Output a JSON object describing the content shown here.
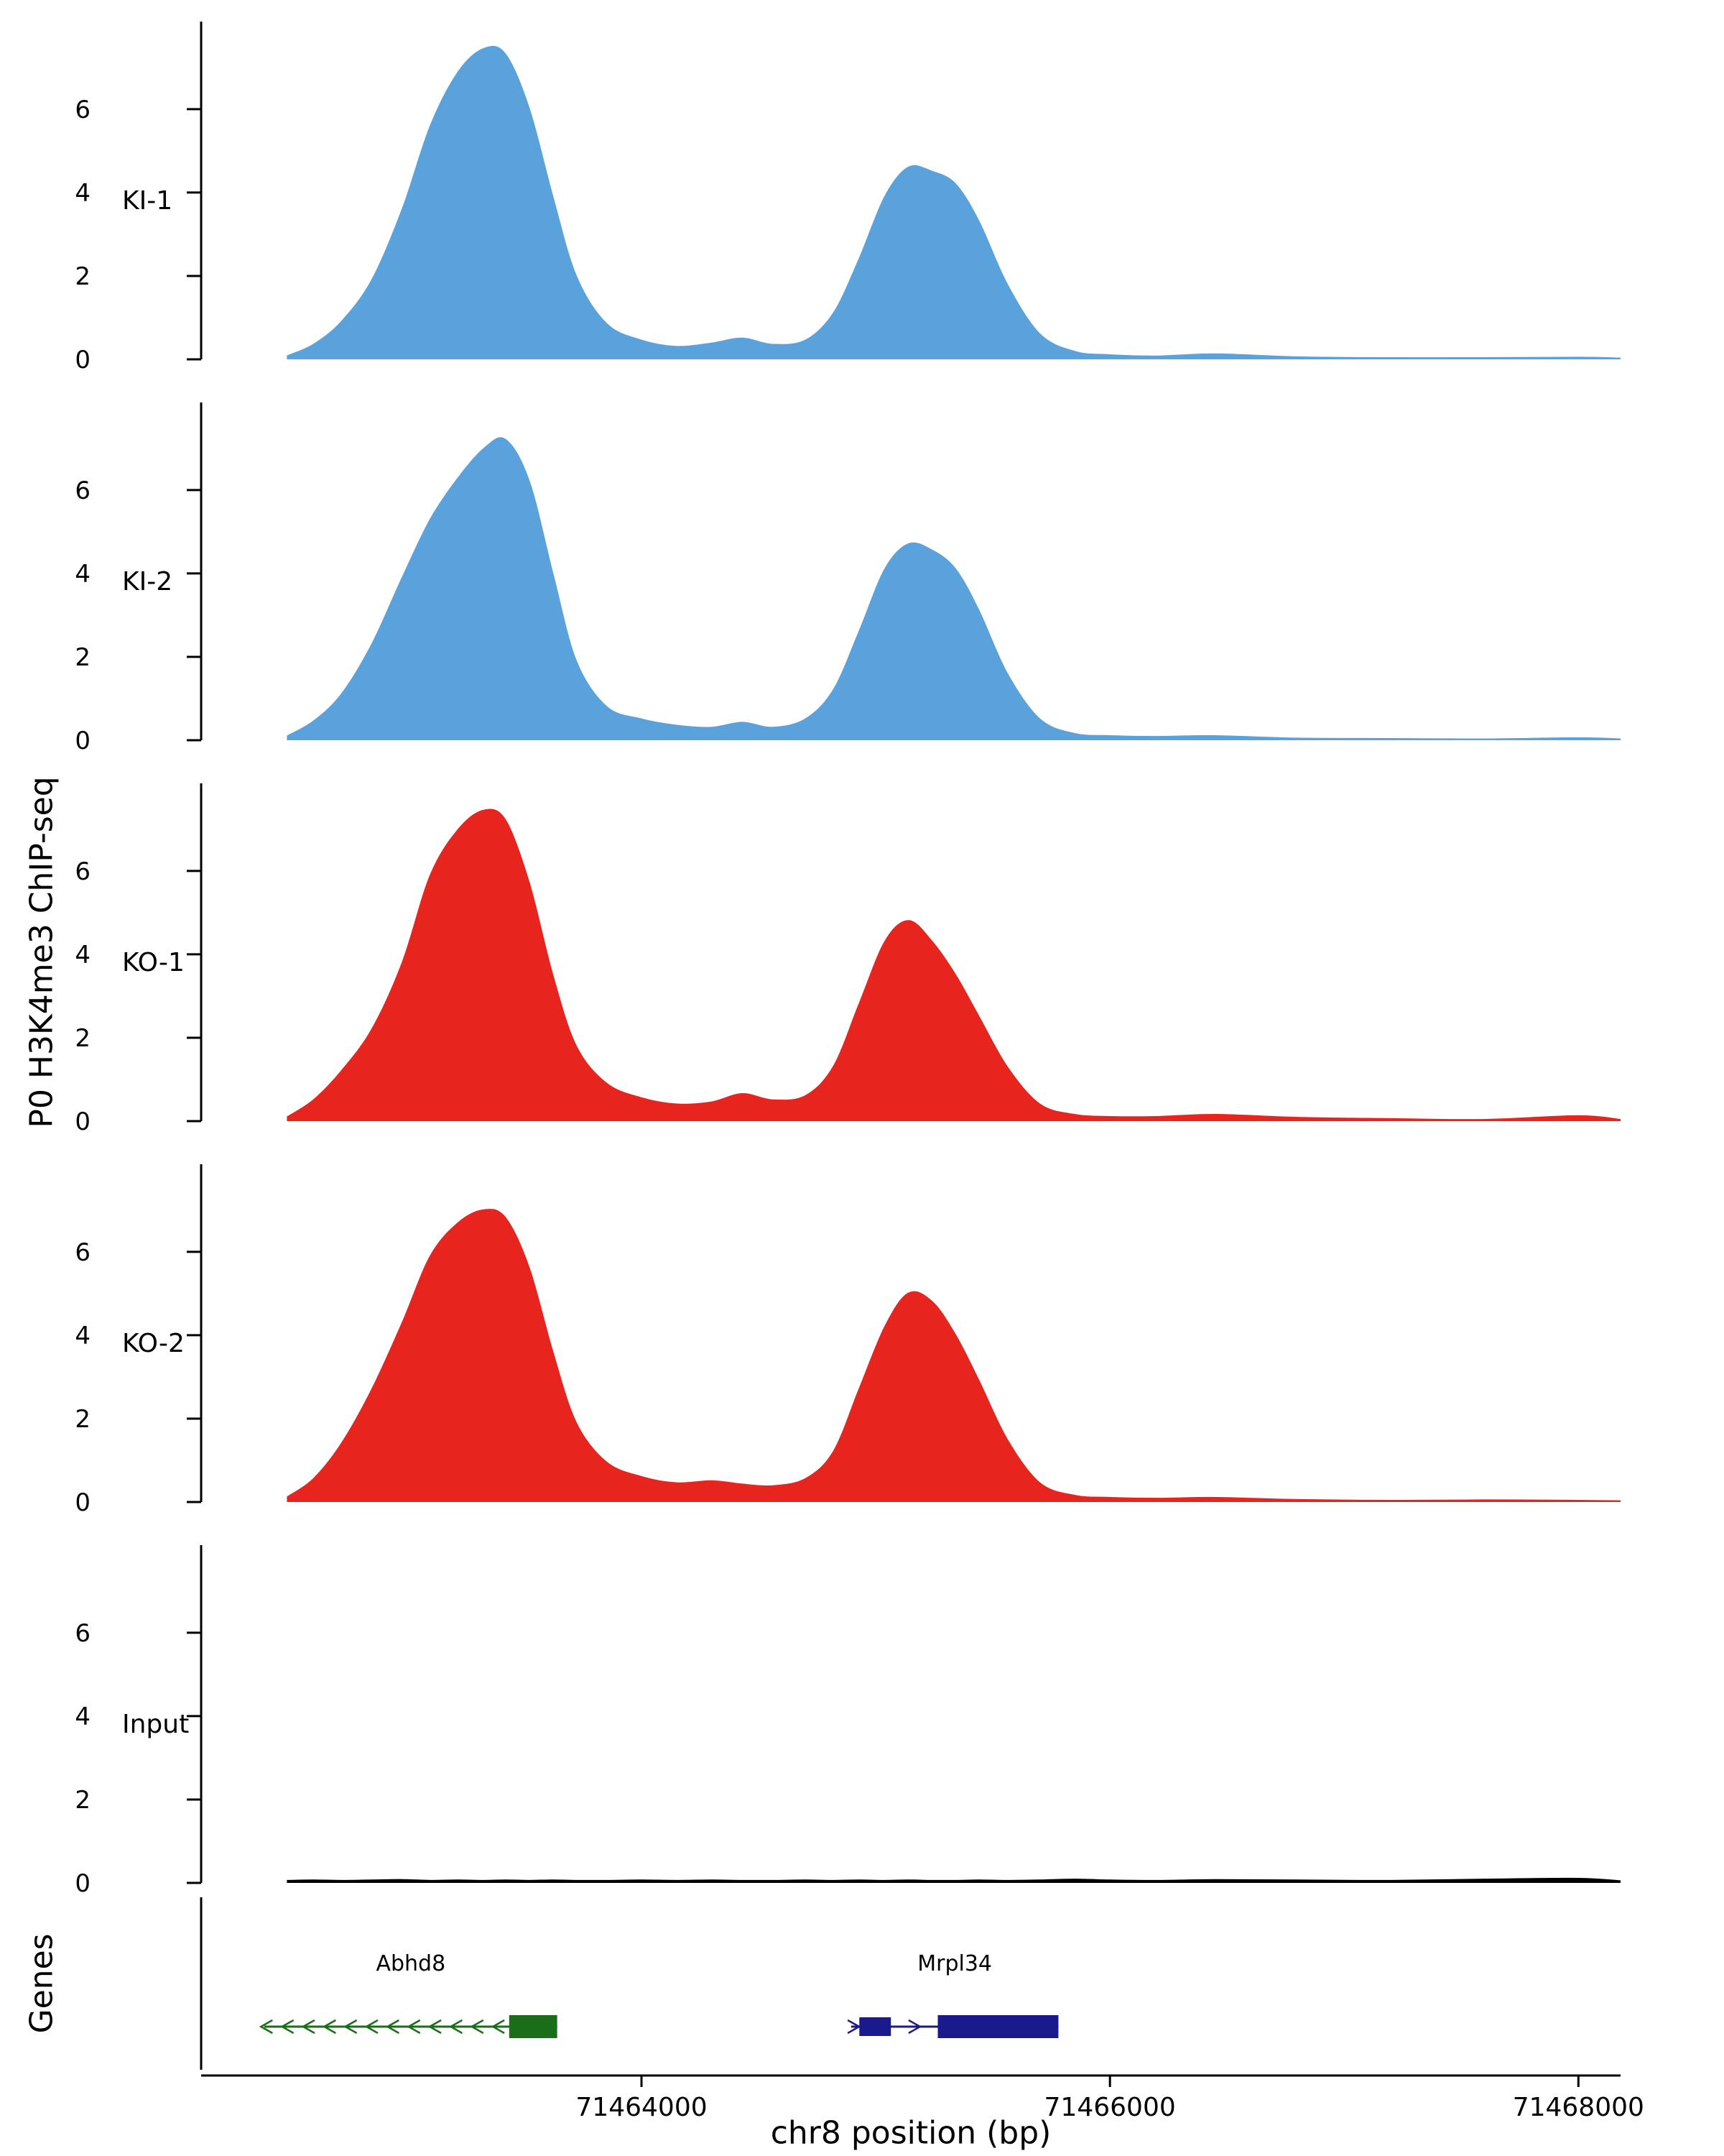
{
  "chart_data": {
    "type": "area",
    "title": "",
    "xlabel": "chr8 position (bp)",
    "ylabel": "P0 H3K4me3 ChIP-seq",
    "x_domain": [
      71462120,
      71468180
    ],
    "x_ticks": [
      71464000,
      71466000,
      71468000
    ],
    "y_ticks": [
      0,
      2,
      4,
      6
    ],
    "ylim": [
      0,
      8.1
    ],
    "grid": false,
    "legend": "none",
    "x": [
      71462490,
      71462600,
      71462720,
      71462850,
      71462980,
      71463100,
      71463220,
      71463330,
      71463420,
      71463520,
      71463620,
      71463720,
      71463850,
      71464000,
      71464150,
      71464300,
      71464430,
      71464560,
      71464700,
      71464820,
      71464930,
      71465040,
      71465140,
      71465240,
      71465340,
      71465440,
      71465560,
      71465700,
      71465850,
      71466000,
      71466200,
      71466450,
      71466800,
      71467200,
      71467600,
      71468000,
      71468180
    ],
    "series": [
      {
        "name": "KI-1",
        "color": "#5AA2DC",
        "values": [
          0.08,
          0.35,
          0.9,
          1.9,
          3.6,
          5.6,
          6.9,
          7.45,
          7.3,
          6.0,
          3.9,
          2.0,
          0.85,
          0.45,
          0.3,
          0.38,
          0.5,
          0.35,
          0.45,
          1.1,
          2.4,
          3.9,
          4.6,
          4.5,
          4.2,
          3.3,
          1.8,
          0.6,
          0.18,
          0.1,
          0.07,
          0.12,
          0.05,
          0.03,
          0.03,
          0.04,
          0.02
        ]
      },
      {
        "name": "KI-2",
        "color": "#5AA2DC",
        "values": [
          0.1,
          0.45,
          1.1,
          2.3,
          3.9,
          5.3,
          6.3,
          7.0,
          7.2,
          6.2,
          4.0,
          1.9,
          0.8,
          0.5,
          0.35,
          0.3,
          0.42,
          0.3,
          0.5,
          1.2,
          2.6,
          4.1,
          4.7,
          4.55,
          4.1,
          3.1,
          1.6,
          0.5,
          0.15,
          0.1,
          0.08,
          0.1,
          0.04,
          0.03,
          0.02,
          0.05,
          0.02
        ]
      },
      {
        "name": "KO-1",
        "color": "#E7251E",
        "values": [
          0.1,
          0.5,
          1.2,
          2.2,
          3.8,
          5.9,
          7.0,
          7.45,
          7.2,
          5.7,
          3.5,
          1.8,
          0.9,
          0.55,
          0.4,
          0.45,
          0.65,
          0.5,
          0.6,
          1.3,
          2.8,
          4.3,
          4.8,
          4.3,
          3.5,
          2.5,
          1.3,
          0.4,
          0.15,
          0.1,
          0.1,
          0.15,
          0.08,
          0.05,
          0.03,
          0.12,
          0.03
        ]
      },
      {
        "name": "KO-2",
        "color": "#E7251E",
        "values": [
          0.12,
          0.55,
          1.4,
          2.7,
          4.3,
          5.9,
          6.7,
          7.0,
          6.8,
          5.6,
          3.6,
          1.9,
          0.95,
          0.6,
          0.45,
          0.5,
          0.42,
          0.38,
          0.55,
          1.2,
          2.7,
          4.2,
          5.0,
          4.8,
          4.0,
          2.9,
          1.5,
          0.45,
          0.15,
          0.1,
          0.08,
          0.1,
          0.05,
          0.03,
          0.04,
          0.03,
          0.02
        ]
      },
      {
        "name": "Input",
        "color": "#000000",
        "values": [
          0.05,
          0.06,
          0.05,
          0.06,
          0.07,
          0.05,
          0.06,
          0.05,
          0.06,
          0.05,
          0.06,
          0.05,
          0.05,
          0.06,
          0.05,
          0.06,
          0.05,
          0.05,
          0.06,
          0.05,
          0.06,
          0.05,
          0.06,
          0.05,
          0.05,
          0.06,
          0.05,
          0.06,
          0.08,
          0.06,
          0.05,
          0.07,
          0.06,
          0.05,
          0.08,
          0.1,
          0.04
        ]
      }
    ],
    "genes_track": {
      "label": "Genes",
      "genes": [
        {
          "name": "Abhd8",
          "strand": "-",
          "color": "#1A6E1A",
          "start": 71462390,
          "end": 71463640,
          "exons": [
            [
              71463435,
              71463640
            ]
          ]
        },
        {
          "name": "Mrpl34",
          "strand": "+",
          "color": "#1A1A8C",
          "start": 71464895,
          "end": 71465780,
          "exons": [
            [
              71464930,
              71465065
            ],
            [
              71465265,
              71465780
            ]
          ]
        }
      ]
    }
  }
}
